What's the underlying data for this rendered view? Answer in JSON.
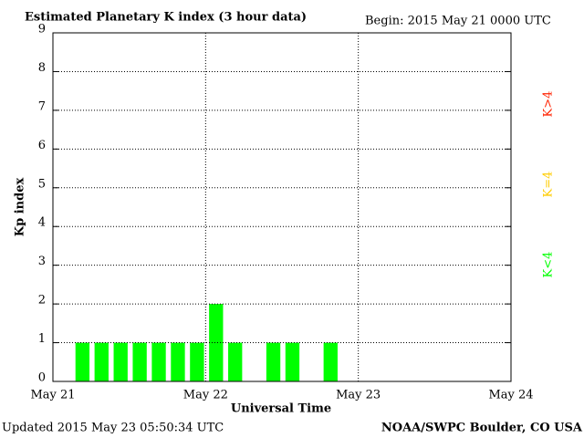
{
  "chart_data": {
    "type": "bar",
    "title": "Estimated Planetary K index (3 hour data)",
    "subtitle": "Begin:  2015 May 21 0000 UTC",
    "ylabel": "Kp index",
    "xlabel": "Universal Time",
    "footer_left": "Updated 2015 May 23 05:50:34 UTC",
    "footer_right": "NOAA/SWPC Boulder, CO USA",
    "x": [
      0,
      3,
      6,
      9,
      12,
      15,
      18,
      21,
      24,
      27,
      30,
      33,
      36,
      39,
      42
    ],
    "values": [
      0,
      1,
      1,
      1,
      1,
      1,
      1,
      1,
      2,
      1,
      0,
      1,
      1,
      0,
      1
    ],
    "bar_width": 2.2,
    "color": "#00ff00",
    "xlim": [
      0,
      72
    ],
    "xticks": [
      {
        "value": 0,
        "label": "May 21"
      },
      {
        "value": 24,
        "label": "May 22"
      },
      {
        "value": 48,
        "label": "May 23"
      },
      {
        "value": 72,
        "label": "May 24"
      }
    ],
    "ylim": [
      0,
      9
    ],
    "yticks": [
      0,
      1,
      2,
      3,
      4,
      5,
      6,
      7,
      8,
      9
    ],
    "grid": true,
    "legend": [
      {
        "label": "K<4",
        "color": "#00ff00"
      },
      {
        "label": "K=4",
        "color": "#ffcc00"
      },
      {
        "label": "K>4",
        "color": "#ff2200"
      }
    ]
  }
}
